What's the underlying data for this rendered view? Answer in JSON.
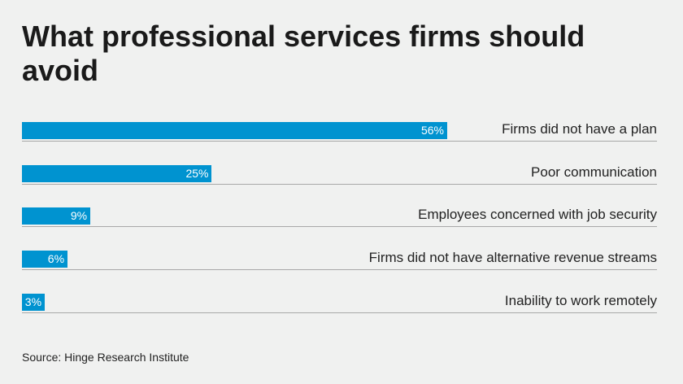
{
  "chart_data": {
    "type": "bar",
    "orientation": "horizontal",
    "title": "What professional services firms should avoid",
    "categories": [
      "Firms did not have a plan",
      "Poor communication",
      "Employees concerned with job security",
      "Firms did not have alternative revenue streams",
      "Inability to work remotely"
    ],
    "values": [
      56,
      25,
      9,
      6,
      3
    ],
    "value_labels": [
      "56%",
      "25%",
      "9%",
      "6%",
      "3%"
    ],
    "unit": "%",
    "bar_color": "#0093d0",
    "grid": false,
    "source": "Source: Hinge Research Institute"
  }
}
